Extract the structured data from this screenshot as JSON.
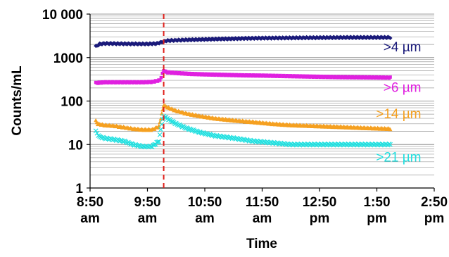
{
  "chart_data": {
    "type": "scatter",
    "ylabel": "Counts/mL",
    "xlabel": "Time",
    "y_scale": "log",
    "ylim": [
      1,
      10000
    ],
    "xlim": [
      "8:50 am",
      "2:50 pm"
    ],
    "y_ticks": [
      {
        "value": 1,
        "label": "1"
      },
      {
        "value": 10,
        "label": "10"
      },
      {
        "value": 100,
        "label": "100"
      },
      {
        "value": 1000,
        "label": "1000"
      },
      {
        "value": 10000,
        "label": "10 000"
      }
    ],
    "x_ticks": [
      {
        "time": "8:50",
        "line1": "8:50",
        "line2": "am"
      },
      {
        "time": "9:50",
        "line1": "9:50",
        "line2": "am"
      },
      {
        "time": "10:50",
        "line1": "10:50",
        "line2": "am"
      },
      {
        "time": "11:50",
        "line1": "11:50",
        "line2": "am"
      },
      {
        "time": "12:50",
        "line1": "12:50",
        "line2": "pm"
      },
      {
        "time": "13:50",
        "line1": "1:50",
        "line2": "pm"
      },
      {
        "time": "14:50",
        "line1": "2:50",
        "line2": "pm"
      }
    ],
    "grid": "horizontal minor log gridlines",
    "event_marker": {
      "time": "10:07",
      "style": "red dashed vertical line"
    },
    "series": [
      {
        "name": ">4 µm",
        "color": "#1a1a7a",
        "marker": "diamond",
        "points": [
          [
            "8:56",
            1800
          ],
          [
            "9:00",
            2050
          ],
          [
            "9:05",
            2100
          ],
          [
            "9:10",
            2100
          ],
          [
            "9:20",
            2080
          ],
          [
            "9:30",
            2070
          ],
          [
            "9:40",
            2060
          ],
          [
            "9:50",
            2060
          ],
          [
            "10:00",
            2100
          ],
          [
            "10:06",
            2300
          ],
          [
            "10:10",
            2450
          ],
          [
            "10:20",
            2500
          ],
          [
            "10:30",
            2550
          ],
          [
            "10:45",
            2600
          ],
          [
            "11:00",
            2650
          ],
          [
            "11:15",
            2700
          ],
          [
            "11:30",
            2750
          ],
          [
            "11:50",
            2800
          ],
          [
            "12:15",
            2830
          ],
          [
            "12:40",
            2860
          ],
          [
            "13:00",
            2880
          ],
          [
            "13:20",
            2900
          ],
          [
            "13:40",
            2900
          ],
          [
            "14:04",
            2900
          ]
        ]
      },
      {
        "name": ">6 µm",
        "color": "#e020e0",
        "marker": "square",
        "points": [
          [
            "8:56",
            260
          ],
          [
            "9:05",
            270
          ],
          [
            "9:15",
            270
          ],
          [
            "9:25",
            270
          ],
          [
            "9:35",
            270
          ],
          [
            "9:45",
            270
          ],
          [
            "9:55",
            275
          ],
          [
            "10:03",
            300
          ],
          [
            "10:07",
            500
          ],
          [
            "10:10",
            460
          ],
          [
            "10:20",
            440
          ],
          [
            "10:35",
            420
          ],
          [
            "10:50",
            410
          ],
          [
            "11:10",
            400
          ],
          [
            "11:30",
            390
          ],
          [
            "11:50",
            385
          ],
          [
            "12:15",
            375
          ],
          [
            "12:40",
            365
          ],
          [
            "13:10",
            355
          ],
          [
            "13:40",
            350
          ],
          [
            "14:04",
            345
          ]
        ]
      },
      {
        "name": ">14 µm",
        "color": "#f5a020",
        "marker": "triangle",
        "points": [
          [
            "8:56",
            35
          ],
          [
            "8:58",
            30
          ],
          [
            "9:05",
            28
          ],
          [
            "9:15",
            27
          ],
          [
            "9:25",
            25
          ],
          [
            "9:35",
            23
          ],
          [
            "9:45",
            22
          ],
          [
            "9:55",
            22
          ],
          [
            "10:02",
            26
          ],
          [
            "10:05",
            50
          ],
          [
            "10:07",
            80
          ],
          [
            "10:12",
            70
          ],
          [
            "10:20",
            60
          ],
          [
            "10:30",
            52
          ],
          [
            "10:45",
            45
          ],
          [
            "11:00",
            40
          ],
          [
            "11:20",
            36
          ],
          [
            "11:40",
            33
          ],
          [
            "12:00",
            30
          ],
          [
            "12:20",
            28
          ],
          [
            "12:40",
            27
          ],
          [
            "13:00",
            26
          ],
          [
            "13:20",
            25
          ],
          [
            "13:40",
            24
          ],
          [
            "14:04",
            23
          ]
        ]
      },
      {
        "name": ">21 µm",
        "color": "#20e0e0",
        "marker": "x",
        "points": [
          [
            "8:56",
            20
          ],
          [
            "9:00",
            15
          ],
          [
            "9:05",
            14
          ],
          [
            "9:15",
            13
          ],
          [
            "9:25",
            12
          ],
          [
            "9:35",
            10
          ],
          [
            "9:45",
            9
          ],
          [
            "9:55",
            9
          ],
          [
            "10:02",
            12
          ],
          [
            "10:05",
            30
          ],
          [
            "10:07",
            45
          ],
          [
            "10:12",
            38
          ],
          [
            "10:20",
            30
          ],
          [
            "10:30",
            24
          ],
          [
            "10:45",
            19
          ],
          [
            "11:00",
            16
          ],
          [
            "11:20",
            14
          ],
          [
            "11:40",
            12
          ],
          [
            "12:00",
            11
          ],
          [
            "12:20",
            10
          ],
          [
            "12:40",
            10
          ],
          [
            "13:00",
            10
          ],
          [
            "13:20",
            10
          ],
          [
            "13:40",
            10
          ],
          [
            "14:04",
            10
          ]
        ]
      }
    ]
  }
}
